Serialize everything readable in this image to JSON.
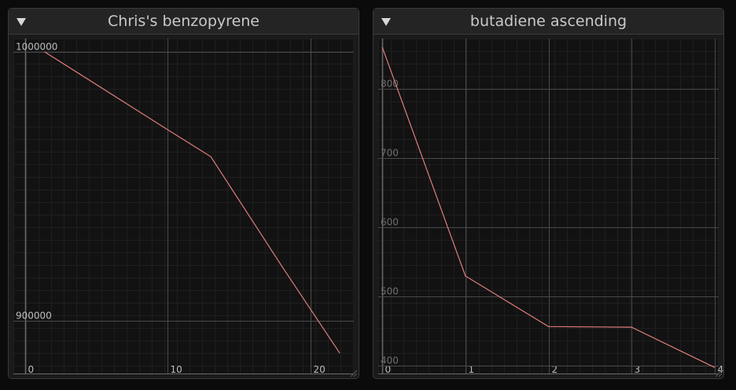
{
  "theme": {
    "grid_minor": "#1f1f1f",
    "grid_major": "#4a4a4a",
    "axis": "#6a6a6a",
    "line": "#e07c7c",
    "tick_label_a": "#bdbdbd",
    "tick_label_b": "#6e6e6e"
  },
  "panels": [
    {
      "title": "Chris's benzopyrene"
    },
    {
      "title": "butadiene ascending"
    }
  ],
  "chart_data": [
    {
      "type": "line",
      "title": "Chris's benzopyrene",
      "xlabel": "",
      "ylabel": "",
      "xlim": [
        -0.8,
        23
      ],
      "ylim": [
        880000,
        1005000
      ],
      "x_ticks": [
        0,
        10,
        20
      ],
      "x_tick_labels": [
        "0",
        "10",
        "20"
      ],
      "y_ticks": [
        900000,
        1000000
      ],
      "y_tick_labels": [
        "900000",
        "1000000"
      ],
      "grid": true,
      "legend": "none",
      "series": [
        {
          "x": [
            1.4,
            10,
            13,
            18,
            22
          ],
          "y": [
            1000000,
            971000,
            961000,
            920000,
            888000
          ]
        }
      ]
    },
    {
      "type": "line",
      "title": "butadiene ascending",
      "xlabel": "",
      "ylabel": "",
      "xlim": [
        -0.05,
        4.05
      ],
      "ylim": [
        388,
        873
      ],
      "x_ticks": [
        0,
        1,
        2,
        3,
        4
      ],
      "x_tick_labels": [
        "0",
        "1",
        "2",
        "3",
        "4"
      ],
      "y_ticks": [
        400,
        500,
        600,
        700,
        800
      ],
      "y_tick_labels": [
        "400",
        "500",
        "600",
        "700",
        "800"
      ],
      "grid": true,
      "legend": "none",
      "series": [
        {
          "x": [
            0,
            1,
            2,
            3,
            4
          ],
          "y": [
            860,
            530,
            457,
            456,
            398
          ]
        }
      ]
    }
  ]
}
